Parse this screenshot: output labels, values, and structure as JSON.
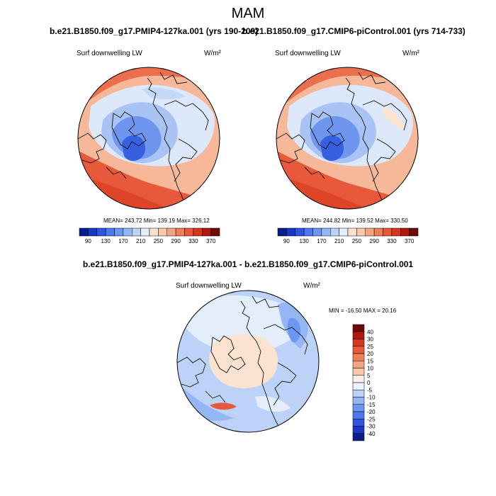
{
  "figure": {
    "title": "MAM",
    "colors": {
      "scale": [
        "#0a1d8c",
        "#1a36c4",
        "#2f55e0",
        "#4a78ef",
        "#6b97f2",
        "#94b6f5",
        "#bcd3f7",
        "#e4eefa",
        "#fbe3d0",
        "#f8c8ab",
        "#f3a582",
        "#ee7f59",
        "#e8583a",
        "#d8351f",
        "#b1170d",
        "#6e0a06"
      ]
    }
  },
  "panels": {
    "left": {
      "case": "b.e21.B1850.f09_g17.PMIP4-127ka.001 (yrs 190-209)",
      "variable": "Surf downwelling LW",
      "units": "W/m²",
      "stats": "MEAN= 243.72  Min= 139.19  Max= 326.12",
      "colorbar_ticks": [
        "90",
        "130",
        "170",
        "210",
        "250",
        "290",
        "330",
        "370"
      ]
    },
    "right": {
      "case": "b.e21.B1850.f09_g17.CMIP6-piControl.001 (yrs 714-733)",
      "variable": "Surf downwelling LW",
      "units": "W/m²",
      "stats": "MEAN= 244.82  Min= 139.52  Max= 330.50",
      "colorbar_ticks": [
        "90",
        "130",
        "170",
        "210",
        "250",
        "290",
        "330",
        "370"
      ]
    },
    "diff": {
      "title": "b.e21.B1850.f09_g17.PMIP4-127ka.001 - b.e21.B1850.f09_g17.CMIP6-piControl.001",
      "variable": "Surf downwelling LW",
      "units": "W/m²",
      "stats": "MIN = -16.50 MAX =  20.16",
      "colorbar_ticks": [
        "40",
        "30",
        "25",
        "20",
        "15",
        "10",
        "5",
        "0",
        "-5",
        "-10",
        "-15",
        "-20",
        "-25",
        "-30",
        "-40"
      ]
    }
  }
}
